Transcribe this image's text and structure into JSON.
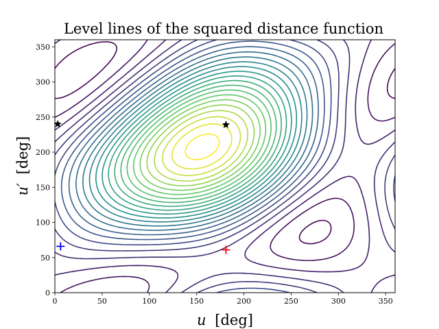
{
  "chart_data": {
    "type": "contour",
    "title": "Level lines of the squared distance function",
    "xlabel": {
      "symbol": "u",
      "unit": "[deg]"
    },
    "ylabel": {
      "symbol": "u′",
      "unit": "[deg]"
    },
    "xlim": [
      0,
      360
    ],
    "ylim": [
      0,
      360
    ],
    "xticks": [
      0,
      50,
      100,
      150,
      200,
      250,
      300,
      350
    ],
    "yticks": [
      0,
      50,
      100,
      150,
      200,
      250,
      300,
      350
    ],
    "colormap": [
      "#440154",
      "#3b528b",
      "#21918c",
      "#5ec962",
      "#fde725"
    ],
    "levels": 24,
    "markers": [
      {
        "name": "global-minimum",
        "shape": "plus",
        "color": "#ff0000",
        "x": 181,
        "y": 61
      },
      {
        "name": "local-minimum",
        "shape": "plus",
        "color": "#0000ff",
        "x": 6,
        "y": 66
      },
      {
        "name": "saddle-point-1",
        "shape": "star",
        "color": "#000000",
        "x": 181,
        "y": 239
      },
      {
        "name": "saddle-point-2",
        "shape": "star",
        "color": "#000000",
        "x": 3,
        "y": 240
      }
    ]
  }
}
